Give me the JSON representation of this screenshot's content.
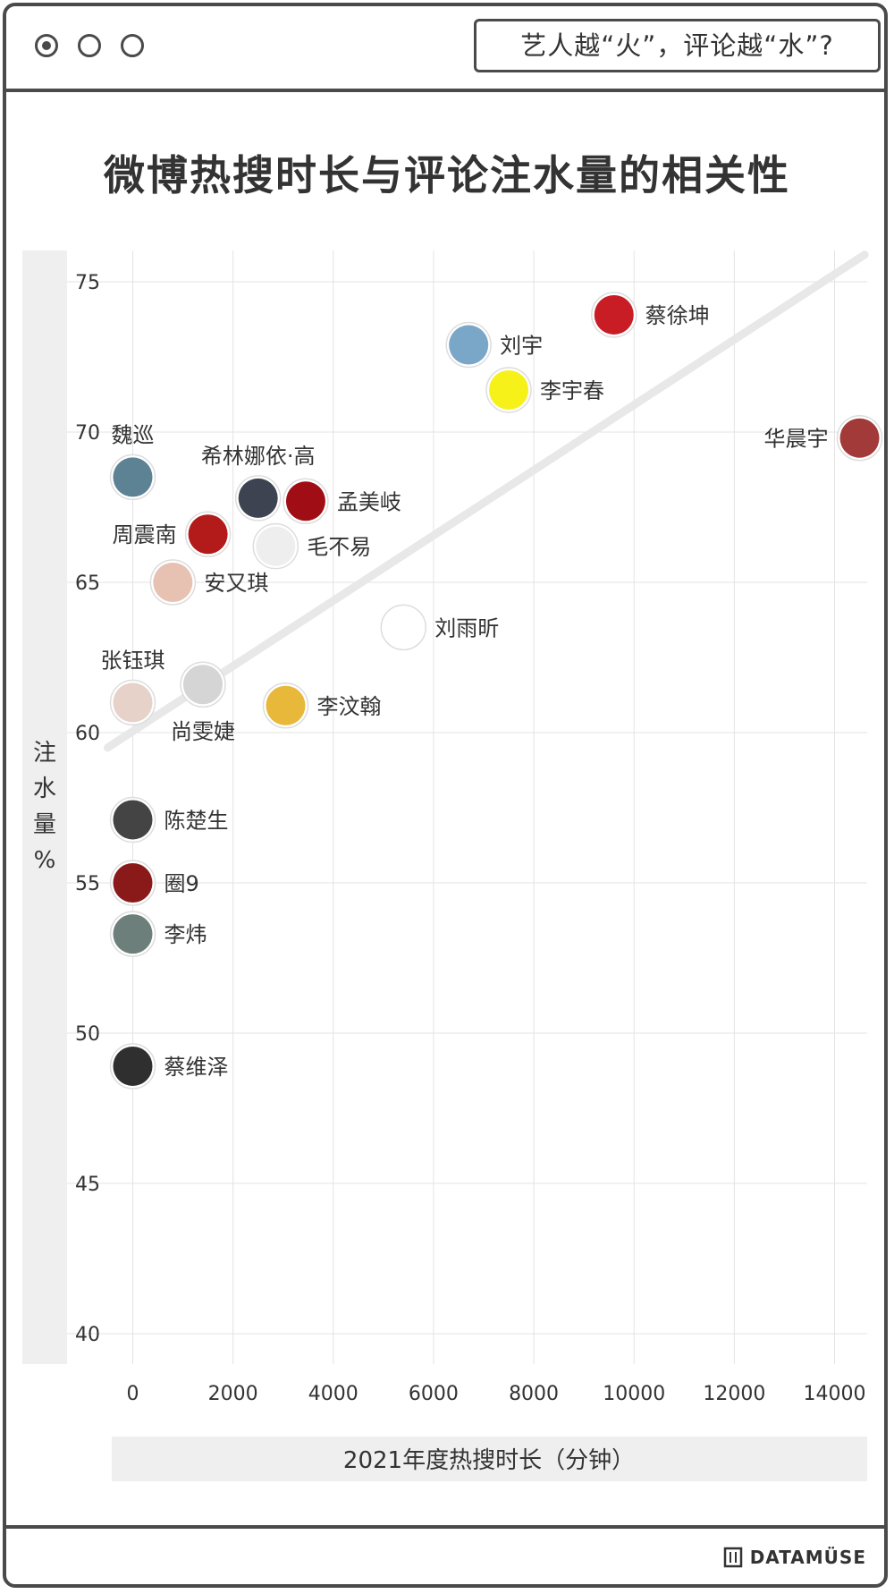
{
  "window": {
    "controls": [
      "radio-selected",
      "radio",
      "radio"
    ],
    "search_text": "艺人越“火”，评论越“水”?"
  },
  "footer": {
    "brand": "DATAMÜSE"
  },
  "chart_data": {
    "type": "scatter",
    "title": "微博热搜时长与评论注水量的相关性",
    "xlabel": "2021年度热搜时长（分钟）",
    "ylabel": "注水量%",
    "xlim": [
      -500,
      14700
    ],
    "ylim": [
      39,
      76
    ],
    "xticks": [
      0,
      2000,
      4000,
      6000,
      8000,
      10000,
      12000,
      14000
    ],
    "yticks": [
      40,
      45,
      50,
      55,
      60,
      65,
      70,
      75
    ],
    "grid": true,
    "trendline": {
      "x": [
        -500,
        14600
      ],
      "y": [
        59.5,
        75.9
      ]
    },
    "points": [
      {
        "name": "蔡徐坤",
        "x": 9600,
        "y": 73.9,
        "color": "#c81d25",
        "label_pos": "right"
      },
      {
        "name": "刘宇",
        "x": 6700,
        "y": 72.9,
        "color": "#7aa6c8",
        "label_pos": "right"
      },
      {
        "name": "李宇春",
        "x": 7500,
        "y": 71.4,
        "color": "#f7f11a",
        "label_pos": "right"
      },
      {
        "name": "华晨宇",
        "x": 14500,
        "y": 69.8,
        "color": "#a33a3a",
        "label_pos": "left"
      },
      {
        "name": "魏巡",
        "x": 0,
        "y": 68.5,
        "color": "#5c8294",
        "label_pos": "top"
      },
      {
        "name": "希林娜依·高",
        "x": 2500,
        "y": 67.8,
        "color": "#3e4352",
        "label_pos": "top"
      },
      {
        "name": "孟美岐",
        "x": 3450,
        "y": 67.7,
        "color": "#a00d14",
        "label_pos": "right"
      },
      {
        "name": "周震南",
        "x": 1500,
        "y": 66.6,
        "color": "#b31b1b",
        "label_pos": "left"
      },
      {
        "name": "毛不易",
        "x": 2850,
        "y": 66.2,
        "color": "#eeeeee",
        "label_pos": "right"
      },
      {
        "name": "安又琪",
        "x": 800,
        "y": 65.0,
        "color": "#e7c2b2",
        "label_pos": "right"
      },
      {
        "name": "刘雨昕",
        "x": 5400,
        "y": 63.5,
        "color": "#ffffff",
        "label_pos": "right"
      },
      {
        "name": "张钰琪",
        "x": 0,
        "y": 61.0,
        "color": "#e6d2c8",
        "label_pos": "top"
      },
      {
        "name": "尚雯婕",
        "x": 1400,
        "y": 61.6,
        "color": "#d5d5d5",
        "label_pos": "bottom"
      },
      {
        "name": "李汶翰",
        "x": 3050,
        "y": 60.9,
        "color": "#e8b83a",
        "label_pos": "right"
      },
      {
        "name": "陈楚生",
        "x": 0,
        "y": 57.1,
        "color": "#444444",
        "label_pos": "right"
      },
      {
        "name": "圈9",
        "x": 0,
        "y": 55.0,
        "color": "#8a1a1a",
        "label_pos": "right"
      },
      {
        "name": "李炜",
        "x": 0,
        "y": 53.3,
        "color": "#6c7f7a",
        "label_pos": "right"
      },
      {
        "name": "蔡维泽",
        "x": 0,
        "y": 48.9,
        "color": "#2f2f2f",
        "label_pos": "right"
      }
    ]
  }
}
